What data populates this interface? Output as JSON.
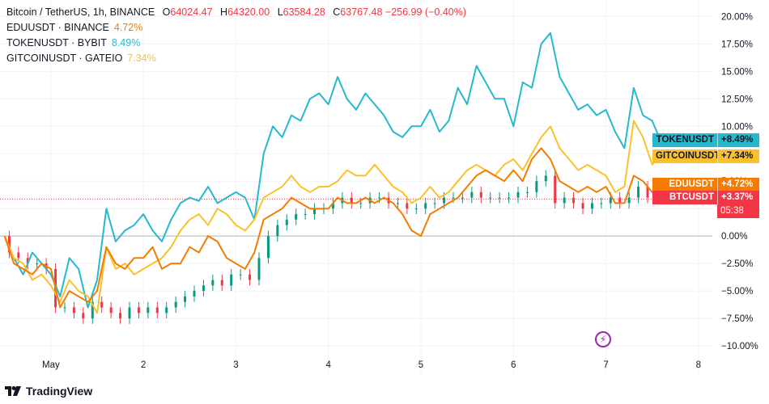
{
  "legend": {
    "main": {
      "title": "Bitcoin / TetherUS, 1h, BINANCE",
      "o_label": "O",
      "o": "64024.47",
      "h_label": "H",
      "h": "64320.00",
      "l_label": "L",
      "l": "63584.28",
      "c_label": "C",
      "c": "63767.48",
      "change": "−256.99 (−0.40%)"
    },
    "rows": [
      {
        "name": "EDUUSDT · BINANCE",
        "value": "4.72%",
        "color": "#f57c00"
      },
      {
        "name": "TOKENUSDT · BYBIT",
        "value": "8.49%",
        "color": "#26b8cc"
      },
      {
        "name": "GITCOINUSDT · GATEIO",
        "value": "7.34%",
        "color": "#fbc02d"
      }
    ]
  },
  "price_tags": [
    {
      "label": "TOKENUSDT",
      "value": "+8.49%",
      "color": "#26b8cc",
      "text": "dark"
    },
    {
      "label": "GITCOINUSDT",
      "value": "+7.34%",
      "color": "#fbc02d",
      "text": "dark"
    },
    {
      "label": "EDUUSDT",
      "value": "+4.72%",
      "color": "#f57c00",
      "text": "white"
    },
    {
      "label": "BTCUSDT",
      "value": "+3.37%",
      "color": "#f23645",
      "text": "white",
      "countdown": "05:38"
    }
  ],
  "branding": {
    "logo_text": "TradingView"
  },
  "chart_data": {
    "type": "line",
    "y_unit": "%",
    "y_ticks": [
      "20.00%",
      "17.50%",
      "15.00%",
      "12.50%",
      "10.00%",
      "7.50%",
      "5.00%",
      "2.50%",
      "0.00%",
      "−2.50%",
      "−5.00%",
      "−7.50%",
      "−10.00%"
    ],
    "ylim": [
      -12.5,
      21.5
    ],
    "x_ticks": [
      "May",
      "2",
      "3",
      "4",
      "5",
      "6",
      "7",
      "8"
    ],
    "x_tick_days": [
      1,
      2,
      3,
      4,
      5,
      6,
      7,
      8
    ],
    "xlim": [
      0.45,
      8.15
    ],
    "series": [
      {
        "name": "TOKENUSDT",
        "color": "#26b8cc",
        "x": [
          0.5,
          0.6,
          0.7,
          0.8,
          0.9,
          1.0,
          1.1,
          1.2,
          1.3,
          1.4,
          1.5,
          1.6,
          1.7,
          1.8,
          1.9,
          2.0,
          2.1,
          2.2,
          2.3,
          2.4,
          2.5,
          2.6,
          2.7,
          2.8,
          2.9,
          3.0,
          3.1,
          3.2,
          3.3,
          3.4,
          3.5,
          3.6,
          3.7,
          3.8,
          3.9,
          4.0,
          4.1,
          4.2,
          4.3,
          4.4,
          4.5,
          4.6,
          4.7,
          4.8,
          4.9,
          5.0,
          5.1,
          5.2,
          5.3,
          5.4,
          5.5,
          5.6,
          5.7,
          5.8,
          5.9,
          6.0,
          6.1,
          6.2,
          6.3,
          6.4,
          6.5,
          6.6,
          6.7,
          6.8,
          6.9,
          7.0,
          7.1,
          7.2,
          7.3,
          7.4,
          7.5,
          7.6
        ],
        "y": [
          0.0,
          -2.0,
          -3.5,
          -1.5,
          -2.5,
          -3.5,
          -5.5,
          -2.0,
          -3.0,
          -6.5,
          -4.0,
          2.5,
          -0.5,
          0.5,
          1.0,
          2.0,
          0.5,
          -0.5,
          1.5,
          3.0,
          3.5,
          3.2,
          4.5,
          3.0,
          3.5,
          4.0,
          3.5,
          1.5,
          7.5,
          10.0,
          9.0,
          11.0,
          10.5,
          12.5,
          13.0,
          12.0,
          14.5,
          12.5,
          11.5,
          13.0,
          12.0,
          11.0,
          9.5,
          9.0,
          10.0,
          10.0,
          11.5,
          9.5,
          10.5,
          13.5,
          12.0,
          15.5,
          14.0,
          12.5,
          12.5,
          10.0,
          14.0,
          13.5,
          17.5,
          18.5,
          14.5,
          13.0,
          11.5,
          12.0,
          11.0,
          11.5,
          9.5,
          8.0,
          13.5,
          11.0,
          10.5,
          8.5
        ]
      },
      {
        "name": "GITCOINUSDT",
        "color": "#fbc02d",
        "x": [
          0.5,
          0.6,
          0.7,
          0.8,
          0.9,
          1.0,
          1.1,
          1.2,
          1.3,
          1.4,
          1.5,
          1.6,
          1.7,
          1.8,
          1.9,
          2.0,
          2.1,
          2.2,
          2.3,
          2.4,
          2.5,
          2.6,
          2.7,
          2.8,
          2.9,
          3.0,
          3.1,
          3.2,
          3.3,
          3.4,
          3.5,
          3.6,
          3.7,
          3.8,
          3.9,
          4.0,
          4.1,
          4.2,
          4.3,
          4.4,
          4.5,
          4.6,
          4.7,
          4.8,
          4.9,
          5.0,
          5.1,
          5.2,
          5.3,
          5.4,
          5.5,
          5.6,
          5.7,
          5.8,
          5.9,
          6.0,
          6.1,
          6.2,
          6.3,
          6.4,
          6.5,
          6.6,
          6.7,
          6.8,
          6.9,
          7.0,
          7.1,
          7.2,
          7.3,
          7.4,
          7.5,
          7.6
        ],
        "y": [
          0.0,
          -2.0,
          -2.5,
          -4.0,
          -3.5,
          -4.5,
          -6.0,
          -4.0,
          -5.0,
          -5.5,
          -7.0,
          -1.0,
          -3.0,
          -2.5,
          -3.5,
          -3.0,
          -2.5,
          -2.0,
          -1.0,
          0.5,
          1.5,
          2.0,
          1.0,
          2.5,
          2.0,
          1.0,
          0.5,
          1.5,
          3.5,
          4.0,
          4.5,
          5.5,
          4.5,
          4.0,
          4.5,
          4.5,
          5.0,
          6.0,
          5.5,
          5.5,
          6.5,
          5.5,
          4.5,
          4.0,
          3.0,
          3.5,
          4.5,
          3.5,
          4.0,
          5.0,
          6.0,
          6.5,
          6.0,
          5.5,
          6.5,
          7.0,
          6.0,
          7.5,
          9.0,
          10.0,
          8.0,
          7.0,
          6.0,
          6.5,
          6.0,
          5.5,
          4.0,
          4.5,
          10.5,
          9.0,
          6.5,
          7.34
        ]
      },
      {
        "name": "EDUUSDT",
        "color": "#f57c00",
        "x": [
          0.5,
          0.6,
          0.7,
          0.8,
          0.9,
          1.0,
          1.1,
          1.2,
          1.3,
          1.4,
          1.5,
          1.6,
          1.7,
          1.8,
          1.9,
          2.0,
          2.1,
          2.2,
          2.3,
          2.4,
          2.5,
          2.6,
          2.7,
          2.8,
          2.9,
          3.0,
          3.1,
          3.2,
          3.3,
          3.4,
          3.5,
          3.6,
          3.7,
          3.8,
          3.9,
          4.0,
          4.1,
          4.2,
          4.3,
          4.4,
          4.5,
          4.6,
          4.7,
          4.8,
          4.9,
          5.0,
          5.1,
          5.2,
          5.3,
          5.4,
          5.5,
          5.6,
          5.7,
          5.8,
          5.9,
          6.0,
          6.1,
          6.2,
          6.3,
          6.4,
          6.5,
          6.6,
          6.7,
          6.8,
          6.9,
          7.0,
          7.1,
          7.2,
          7.3,
          7.4,
          7.5,
          7.6
        ],
        "y": [
          0.0,
          -2.5,
          -3.0,
          -3.5,
          -2.5,
          -3.0,
          -6.5,
          -5.0,
          -5.5,
          -6.0,
          -5.0,
          -1.0,
          -2.5,
          -3.0,
          -2.0,
          -2.0,
          -1.0,
          -3.0,
          -2.5,
          -2.5,
          -1.0,
          -1.5,
          0.0,
          -0.5,
          -2.0,
          -2.5,
          -3.0,
          -1.5,
          1.5,
          2.0,
          2.5,
          3.5,
          3.0,
          2.5,
          2.5,
          2.5,
          3.5,
          3.0,
          3.0,
          3.5,
          3.0,
          3.5,
          3.0,
          2.0,
          0.5,
          0.0,
          2.0,
          2.5,
          3.0,
          3.5,
          4.5,
          5.5,
          6.0,
          5.5,
          5.0,
          6.0,
          5.0,
          7.0,
          8.0,
          7.0,
          5.0,
          4.5,
          4.0,
          4.5,
          4.0,
          4.5,
          3.0,
          3.0,
          5.5,
          5.0,
          4.0,
          4.72
        ]
      },
      {
        "name": "BTCUSDT",
        "color": "#f23645",
        "x": [
          0.5,
          0.6,
          0.7,
          0.8,
          0.9,
          1.0,
          1.1,
          1.2,
          1.3,
          1.4,
          1.5,
          1.6,
          1.7,
          1.8,
          1.9,
          2.0,
          2.1,
          2.2,
          2.3,
          2.4,
          2.5,
          2.6,
          2.7,
          2.8,
          2.9,
          3.0,
          3.1,
          3.2,
          3.3,
          3.4,
          3.5,
          3.6,
          3.7,
          3.8,
          3.9,
          4.0,
          4.1,
          4.2,
          4.3,
          4.4,
          4.5,
          4.6,
          4.7,
          4.8,
          4.9,
          5.0,
          5.1,
          5.2,
          5.3,
          5.4,
          5.5,
          5.6,
          5.7,
          5.8,
          5.9,
          6.0,
          6.1,
          6.2,
          6.3,
          6.4,
          6.5,
          6.6,
          6.7,
          6.8,
          6.9,
          7.0,
          7.1,
          7.2,
          7.3,
          7.4,
          7.5,
          7.6
        ],
        "y": [
          0.0,
          -1.5,
          -2.0,
          -2.5,
          -2.5,
          -3.0,
          -6.5,
          -6.5,
          -7.0,
          -7.5,
          -6.0,
          -6.5,
          -7.0,
          -7.5,
          -6.5,
          -7.0,
          -6.5,
          -7.0,
          -6.5,
          -6.0,
          -5.5,
          -5.0,
          -4.5,
          -4.0,
          -4.5,
          -3.5,
          -3.5,
          -4.0,
          -2.0,
          0.0,
          1.0,
          1.5,
          2.0,
          2.0,
          2.5,
          2.5,
          3.0,
          3.5,
          3.0,
          3.0,
          3.5,
          3.5,
          3.0,
          3.0,
          2.5,
          2.5,
          3.0,
          3.0,
          3.5,
          3.5,
          3.5,
          4.0,
          3.5,
          3.5,
          3.5,
          3.5,
          4.0,
          4.0,
          5.0,
          5.5,
          3.0,
          3.5,
          3.0,
          2.5,
          3.0,
          3.0,
          3.5,
          3.0,
          3.5,
          4.5,
          3.5,
          3.37
        ]
      }
    ]
  }
}
